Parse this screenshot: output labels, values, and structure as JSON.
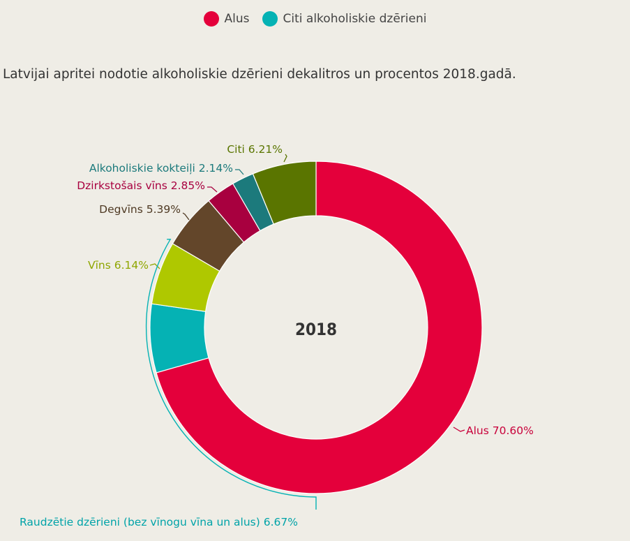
{
  "legend": {
    "items": [
      {
        "label": "Alus",
        "color": "#e4003b"
      },
      {
        "label": "Citi alkoholiskie dzērieni",
        "color": "#05b2b4"
      }
    ]
  },
  "subtitle": "Latvijai apritei nodotie alkoholiskie dzērieni dekalitros un procentos 2018.gadā.",
  "chart_data": {
    "type": "pie",
    "donut": true,
    "center_label": "2018",
    "slices": [
      {
        "name": "Alus",
        "value": 70.6,
        "label": "Alus 70.60%",
        "color": "#e4003b",
        "label_color": "#c8003a"
      },
      {
        "name": "Raudzētie dzērieni (bez vīnogu vīna un alus)",
        "value": 6.67,
        "label": "Raudzētie dzērieni (bez vīnogu vīna un alus) 6.67%",
        "color": "#05b2b4",
        "label_color": "#00a3a8"
      },
      {
        "name": "Vīns",
        "value": 6.14,
        "label": "Vīns 6.14%",
        "color": "#afc800",
        "label_color": "#8fa600"
      },
      {
        "name": "Degvīns",
        "value": 5.39,
        "label": "Degvīns 5.39%",
        "color": "#63462a",
        "label_color": "#4f3a24"
      },
      {
        "name": "Dzirkstošais vīns",
        "value": 2.85,
        "label": "Dzirkstošais vīns 2.85%",
        "color": "#a8003f",
        "label_color": "#a8003f"
      },
      {
        "name": "Alkoholiskie kokteiļi",
        "value": 2.14,
        "label": "Alkoholiskie kokteiļi 2.14%",
        "color": "#1c7a7c",
        "label_color": "#1c7a7c"
      },
      {
        "name": "Citi",
        "value": 6.21,
        "label": "Citi 6.21%",
        "color": "#5a7500",
        "label_color": "#5a7500"
      }
    ],
    "groups": [
      {
        "name": "Alus",
        "color": "#e4003b",
        "members": [
          "Alus"
        ]
      },
      {
        "name": "Citi alkoholiskie dzērieni",
        "color": "#05b2b4",
        "members": [
          "Raudzētie dzērieni (bez vīnogu vīna un alus)",
          "Vīns",
          "Degvīns",
          "Dzirkstošais vīns",
          "Alkoholiskie kokteiļi",
          "Citi"
        ]
      }
    ]
  }
}
